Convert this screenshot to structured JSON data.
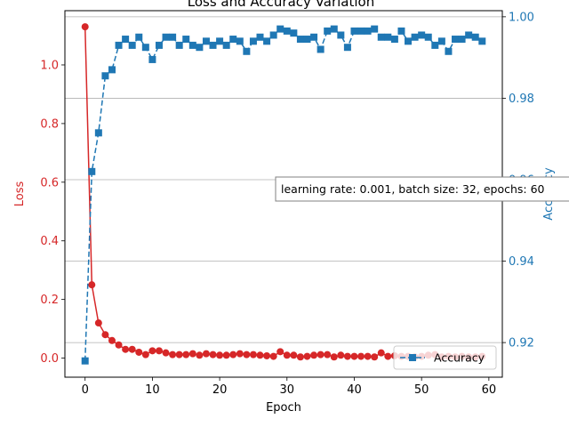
{
  "chart_data": {
    "type": "line",
    "title": "Loss and Accuracy Variation",
    "xlabel": "Epoch",
    "xlim": [
      -3,
      62
    ],
    "xticks": [
      0,
      10,
      20,
      30,
      40,
      50,
      60
    ],
    "x": [
      0,
      1,
      2,
      3,
      4,
      5,
      6,
      7,
      8,
      9,
      10,
      11,
      12,
      13,
      14,
      15,
      16,
      17,
      18,
      19,
      20,
      21,
      22,
      23,
      24,
      25,
      26,
      27,
      28,
      29,
      30,
      31,
      32,
      33,
      34,
      35,
      36,
      37,
      38,
      39,
      40,
      41,
      42,
      43,
      44,
      45,
      46,
      47,
      48,
      49,
      50,
      51,
      52,
      53,
      54,
      55,
      56,
      57,
      58,
      59
    ],
    "left_axis": {
      "label": "Loss",
      "color": "#d62728",
      "ylim": [
        -0.065,
        1.185
      ],
      "ticks": [
        0.0,
        0.2,
        0.4,
        0.6,
        0.8,
        1.0
      ],
      "tick_labels": [
        "0.0",
        "0.2",
        "0.4",
        "0.6",
        "0.8",
        "1.0"
      ]
    },
    "right_axis": {
      "label": "Accuracy",
      "color": "#1f77b4",
      "ylim": [
        0.9115,
        1.0015
      ],
      "ticks": [
        0.92,
        0.94,
        0.96,
        0.98,
        1.0
      ],
      "tick_labels": [
        "0.92",
        "0.94",
        "0.96",
        "0.98",
        "1.00"
      ],
      "grid": true
    },
    "series": [
      {
        "axis": "left",
        "color": "#d62728",
        "marker": "circle",
        "linestyle": "solid",
        "values": [
          1.13,
          0.25,
          0.12,
          0.08,
          0.06,
          0.045,
          0.03,
          0.03,
          0.02,
          0.012,
          0.025,
          0.025,
          0.018,
          0.012,
          0.012,
          0.012,
          0.015,
          0.01,
          0.015,
          0.012,
          0.01,
          0.01,
          0.012,
          0.015,
          0.012,
          0.012,
          0.01,
          0.008,
          0.006,
          0.022,
          0.01,
          0.01,
          0.004,
          0.006,
          0.01,
          0.012,
          0.012,
          0.004,
          0.01,
          0.006,
          0.006,
          0.006,
          0.006,
          0.004,
          0.018,
          0.006,
          0.008,
          0.006,
          0.006,
          0.004,
          0.006,
          0.01,
          0.012,
          0.004,
          0.006,
          0.004,
          0.006,
          0.004,
          0.004,
          0.006
        ]
      },
      {
        "name": "Accuracy",
        "axis": "right",
        "color": "#1f77b4",
        "marker": "square",
        "linestyle": "dashed",
        "values": [
          0.9155,
          0.962,
          0.9715,
          0.9855,
          0.987,
          0.993,
          0.9945,
          0.993,
          0.995,
          0.9925,
          0.9895,
          0.993,
          0.995,
          0.995,
          0.993,
          0.9945,
          0.993,
          0.9925,
          0.994,
          0.993,
          0.994,
          0.993,
          0.9945,
          0.994,
          0.9915,
          0.994,
          0.995,
          0.994,
          0.9955,
          0.997,
          0.9965,
          0.996,
          0.9945,
          0.9945,
          0.995,
          0.992,
          0.9965,
          0.997,
          0.9955,
          0.9925,
          0.9965,
          0.9965,
          0.9965,
          0.997,
          0.995,
          0.995,
          0.9945,
          0.9965,
          0.994,
          0.995,
          0.9955,
          0.995,
          0.993,
          0.994,
          0.9915,
          0.9945,
          0.9945,
          0.9955,
          0.995,
          0.994
        ]
      }
    ],
    "annotation": "learning rate: 0.001, batch size: 32, epochs: 60",
    "legend": {
      "position": "lower-right",
      "entries": [
        "Accuracy"
      ]
    }
  }
}
